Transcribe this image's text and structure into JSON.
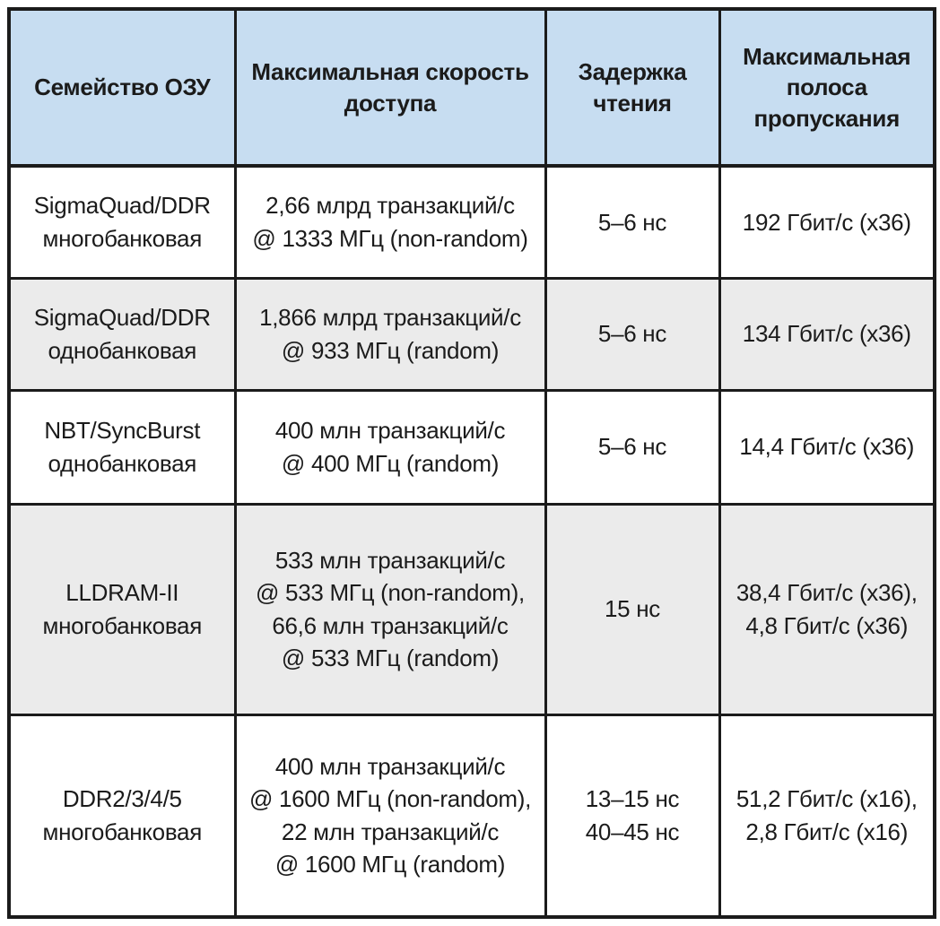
{
  "colors": {
    "header_bg": "#c7ddf1",
    "shaded_row_bg": "#ebebeb",
    "row_bg": "#ffffff",
    "border": "#1b1b1b",
    "text": "#1b1b1b"
  },
  "table": {
    "columns": [
      "Семейство ОЗУ",
      "Максимальная скорость\nдоступа",
      "Задержка\nчтения",
      "Максимальная\nполоса\nпропускания"
    ],
    "rows": [
      {
        "family": "SigmaQuad/DDR\nмногобанковая",
        "speed": "2,66 млрд транзакций/с\n@ 1333 МГц (non-random)",
        "latency": "5–6 нс",
        "bandwidth": "192 Гбит/с (x36)"
      },
      {
        "family": "SigmaQuad/DDR\nоднобанковая",
        "speed": "1,866 млрд транзакций/с\n@ 933 МГц (random)",
        "latency": "5–6 нс",
        "bandwidth": "134 Гбит/с (x36)"
      },
      {
        "family": "NBT/SyncBurst\nоднобанковая",
        "speed": "400 млн транзакций/с\n@ 400 МГц (random)",
        "latency": "5–6 нс",
        "bandwidth": "14,4 Гбит/с (x36)"
      },
      {
        "family": "LLDRAM-II\nмногобанковая",
        "speed": "533 млн транзакций/с\n@ 533 МГц (non-random),\n66,6 млн транзакций/с\n@ 533 МГц (random)",
        "latency": "15 нс",
        "bandwidth": "38,4 Гбит/с (x36),\n4,8 Гбит/с (x36)"
      },
      {
        "family": "DDR2/3/4/5\nмногобанковая",
        "speed": "400 млн транзакций/с\n@ 1600 МГц (non-random),\n22 млн транзакций/с\n@ 1600 МГц (random)",
        "latency": "13–15 нс\n40–45 нс",
        "bandwidth": "51,2 Гбит/с (x16),\n2,8 Гбит/с (x16)"
      }
    ]
  }
}
